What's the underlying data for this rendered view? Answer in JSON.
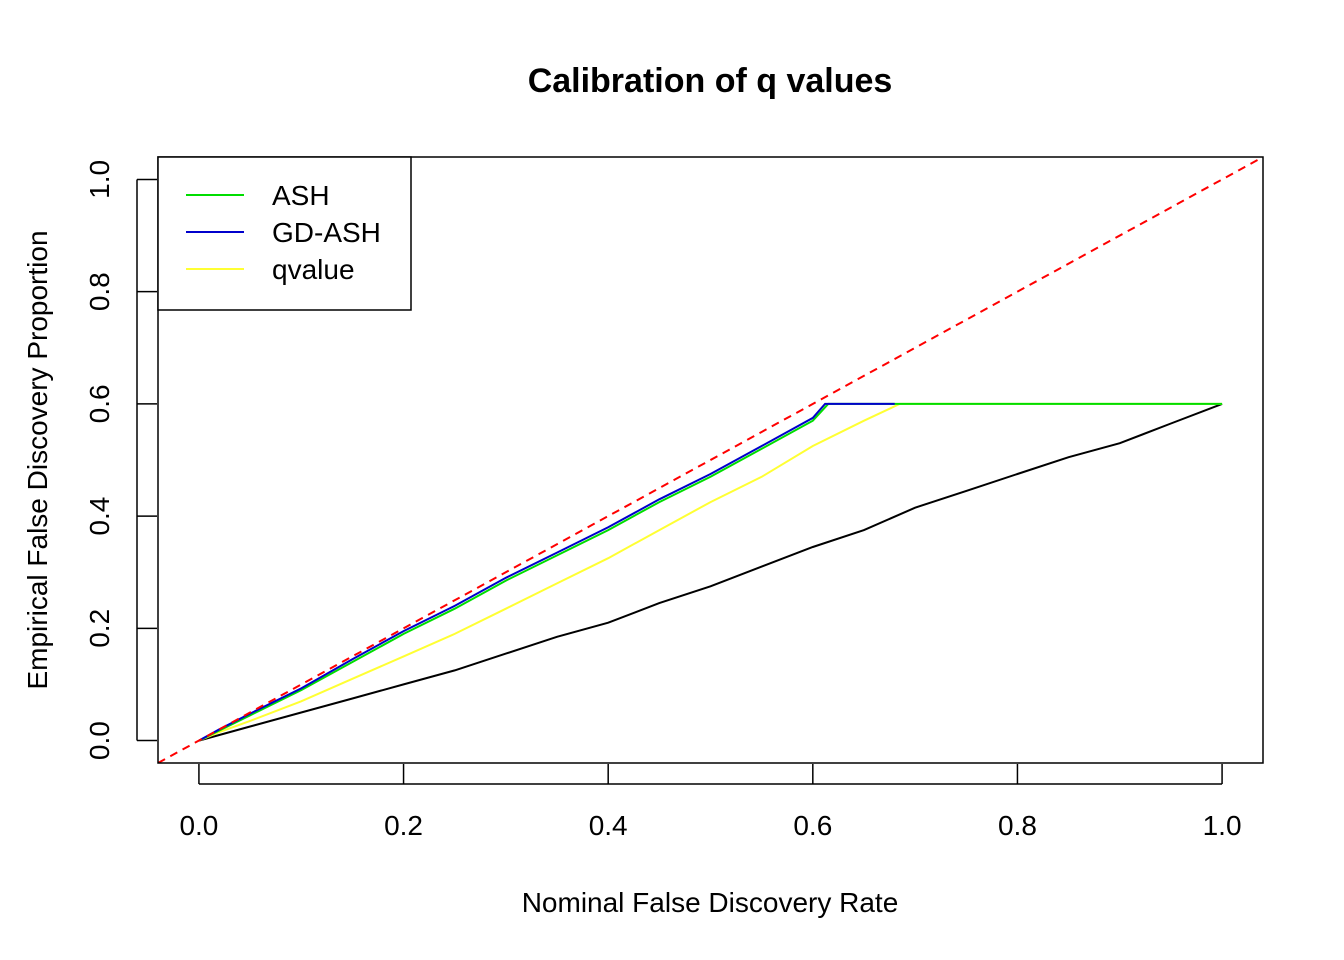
{
  "chart_data": {
    "type": "line",
    "title": "Calibration of q values",
    "xlabel": "Nominal False Discovery Rate",
    "ylabel": "Empirical False Discovery Proportion",
    "xlim": [
      -0.04,
      1.04
    ],
    "ylim": [
      -0.04,
      1.04
    ],
    "x_ticks": [
      0.0,
      0.2,
      0.4,
      0.6,
      0.8,
      1.0
    ],
    "y_ticks": [
      0.0,
      0.2,
      0.4,
      0.6,
      0.8,
      1.0
    ],
    "x_tick_labels": [
      "0.0",
      "0.2",
      "0.4",
      "0.6",
      "0.8",
      "1.0"
    ],
    "y_tick_labels": [
      "0.0",
      "0.2",
      "0.4",
      "0.6",
      "0.8",
      "1.0"
    ],
    "grid": false,
    "legend_position": "top-left",
    "series": [
      {
        "name": "ASH",
        "color": "#00dd00",
        "style": "solid",
        "in_legend": true,
        "x": [
          0.0,
          0.02,
          0.05,
          0.1,
          0.15,
          0.2,
          0.25,
          0.3,
          0.35,
          0.4,
          0.45,
          0.5,
          0.55,
          0.6,
          0.615,
          1.0
        ],
        "y": [
          0.0,
          0.018,
          0.045,
          0.09,
          0.14,
          0.19,
          0.235,
          0.285,
          0.33,
          0.375,
          0.425,
          0.47,
          0.52,
          0.57,
          0.6,
          0.6
        ]
      },
      {
        "name": "GD-ASH",
        "color": "#0000cc",
        "style": "solid",
        "in_legend": true,
        "x": [
          0.0,
          0.02,
          0.05,
          0.1,
          0.15,
          0.2,
          0.25,
          0.3,
          0.35,
          0.4,
          0.45,
          0.5,
          0.55,
          0.6,
          0.612,
          0.68
        ],
        "y": [
          0.0,
          0.02,
          0.048,
          0.093,
          0.145,
          0.195,
          0.24,
          0.29,
          0.335,
          0.38,
          0.43,
          0.475,
          0.525,
          0.575,
          0.6,
          0.6
        ]
      },
      {
        "name": "qvalue",
        "color": "#ffff33",
        "style": "solid",
        "in_legend": true,
        "x": [
          0.0,
          0.02,
          0.05,
          0.1,
          0.15,
          0.2,
          0.25,
          0.3,
          0.35,
          0.4,
          0.45,
          0.5,
          0.55,
          0.6,
          0.65,
          0.685,
          1.0
        ],
        "y": [
          0.0,
          0.015,
          0.035,
          0.07,
          0.11,
          0.15,
          0.19,
          0.235,
          0.28,
          0.325,
          0.375,
          0.425,
          0.47,
          0.525,
          0.57,
          0.6,
          0.6
        ]
      },
      {
        "name": "",
        "color": "#000000",
        "style": "solid",
        "in_legend": false,
        "x": [
          0.0,
          0.05,
          0.1,
          0.15,
          0.2,
          0.25,
          0.3,
          0.35,
          0.4,
          0.45,
          0.5,
          0.55,
          0.6,
          0.65,
          0.7,
          0.75,
          0.8,
          0.85,
          0.9,
          0.95,
          1.0
        ],
        "y": [
          0.0,
          0.025,
          0.05,
          0.075,
          0.1,
          0.125,
          0.155,
          0.185,
          0.21,
          0.245,
          0.275,
          0.31,
          0.345,
          0.375,
          0.415,
          0.445,
          0.475,
          0.505,
          0.53,
          0.565,
          0.6
        ]
      },
      {
        "name": "",
        "color": "#ff0000",
        "style": "dashed",
        "in_legend": false,
        "x": [
          -0.04,
          1.04
        ],
        "y": [
          -0.04,
          1.04
        ]
      }
    ]
  }
}
